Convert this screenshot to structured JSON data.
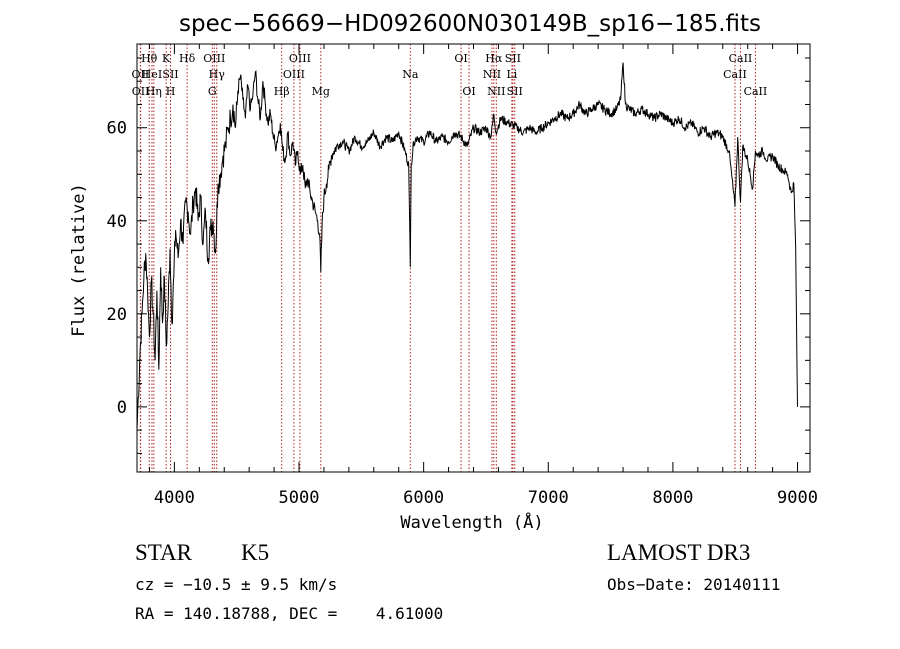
{
  "chart_data": {
    "type": "line",
    "title": "spec−56669−HD092600N030149B_sp16−185.fits",
    "xlabel": "Wavelength (Å)",
    "ylabel": "Flux (relative)",
    "xlim": [
      3700,
      9100
    ],
    "ylim": [
      -14,
      78
    ],
    "xticks": [
      4000,
      5000,
      6000,
      7000,
      8000,
      9000
    ],
    "xtick_labels": [
      "4000",
      "5000",
      "6000",
      "7000",
      "8000",
      "9000"
    ],
    "yticks": [
      0,
      20,
      40,
      60
    ],
    "ytick_labels": [
      "0",
      "20",
      "40",
      "60"
    ],
    "line_color": "#000000",
    "marker_color": "#b22222",
    "series": [
      {
        "x": [
          3700,
          3710,
          3725,
          3740,
          3755,
          3770,
          3785,
          3800,
          3815,
          3830,
          3845,
          3860,
          3875,
          3890,
          3905,
          3920,
          3935,
          3950,
          3965,
          3980,
          3995,
          4010,
          4030,
          4050,
          4070,
          4090,
          4110,
          4130,
          4150,
          4170,
          4190,
          4210,
          4230,
          4250,
          4270,
          4290,
          4310,
          4330,
          4350,
          4370,
          4390,
          4410,
          4430,
          4450,
          4470,
          4490,
          4510,
          4530,
          4550,
          4570,
          4590,
          4610,
          4630,
          4650,
          4670,
          4690,
          4710,
          4730,
          4750,
          4770,
          4790,
          4810,
          4830,
          4850,
          4870,
          4890,
          4910,
          4930,
          4950,
          4970,
          4990,
          5010,
          5030,
          5050,
          5070,
          5090,
          5110,
          5130,
          5150,
          5165,
          5175,
          5185,
          5200,
          5220,
          5240,
          5260,
          5280,
          5300,
          5350,
          5400,
          5450,
          5500,
          5550,
          5600,
          5650,
          5700,
          5750,
          5800,
          5850,
          5880,
          5893,
          5900,
          5920,
          5950,
          6000,
          6050,
          6100,
          6150,
          6200,
          6250,
          6300,
          6350,
          6400,
          6450,
          6500,
          6540,
          6563,
          6580,
          6620,
          6680,
          6750,
          6800,
          6850,
          6900,
          6950,
          7000,
          7050,
          7100,
          7150,
          7200,
          7250,
          7300,
          7350,
          7400,
          7450,
          7500,
          7550,
          7580,
          7600,
          7620,
          7650,
          7700,
          7750,
          7800,
          7850,
          7900,
          7950,
          8000,
          8050,
          8100,
          8150,
          8200,
          8250,
          8300,
          8350,
          8400,
          8450,
          8498,
          8520,
          8542,
          8560,
          8600,
          8640,
          8662,
          8680,
          8720,
          8760,
          8800,
          8840,
          8880,
          8920,
          8950,
          8970,
          8985,
          8995,
          9000
        ],
        "y": [
          -5,
          2,
          12,
          20,
          28,
          33,
          25,
          15,
          27,
          20,
          10,
          25,
          8,
          30,
          18,
          28,
          13,
          22,
          34,
          18,
          28,
          38,
          32,
          40,
          35,
          44,
          42,
          37,
          44,
          47,
          40,
          45,
          35,
          42,
          32,
          38,
          40,
          33,
          48,
          50,
          54,
          56,
          60,
          62,
          65,
          60,
          68,
          71,
          66,
          62,
          69,
          64,
          67,
          72,
          66,
          62,
          70,
          65,
          61,
          63,
          59,
          56,
          58,
          61,
          55,
          53,
          59,
          54,
          57,
          52,
          55,
          50,
          52,
          47,
          49,
          46,
          44,
          42,
          40,
          37,
          29,
          39,
          45,
          48,
          51,
          54,
          55,
          56,
          57,
          55,
          58,
          56,
          57,
          59,
          56,
          58,
          57,
          59,
          55,
          52,
          30,
          52,
          57,
          58,
          57,
          59,
          57,
          58,
          57,
          59,
          58,
          56,
          60,
          59,
          60,
          58,
          63,
          59,
          62,
          61,
          60,
          59,
          60,
          59,
          60,
          61,
          62,
          63,
          62,
          63,
          65,
          63,
          64,
          65,
          64,
          63,
          64,
          66,
          74,
          65,
          64,
          63,
          64,
          63,
          62,
          63,
          62,
          61,
          62,
          60,
          61,
          59,
          60,
          58,
          59,
          58,
          55,
          43,
          58,
          44,
          56,
          53,
          47,
          55,
          54,
          55,
          53,
          54,
          52,
          51,
          50,
          46,
          48,
          34,
          10,
          0
        ]
      }
    ],
    "lines": [
      {
        "label": "OII",
        "x": 3727,
        "row": 2
      },
      {
        "label": "OII",
        "x": 3729,
        "row": 3
      },
      {
        "label": "Hθ",
        "x": 3798,
        "row": 1
      },
      {
        "label": "HeI",
        "x": 3820,
        "row": 2
      },
      {
        "label": "Hη",
        "x": 3835,
        "row": 3
      },
      {
        "label": "K",
        "x": 3934,
        "row": 1
      },
      {
        "label": "SII",
        "x": 3969,
        "row": 2
      },
      {
        "label": "H",
        "x": 3969,
        "row": 3
      },
      {
        "label": "Hδ",
        "x": 4102,
        "row": 1
      },
      {
        "label": "G",
        "x": 4304,
        "row": 3
      },
      {
        "label": "OIII",
        "x": 4320,
        "row": 1
      },
      {
        "label": "Hγ",
        "x": 4340,
        "row": 2
      },
      {
        "label": "Hβ",
        "x": 4861,
        "row": 3
      },
      {
        "label": "OIII",
        "x": 4959,
        "row": 2
      },
      {
        "label": "OIII",
        "x": 5007,
        "row": 1
      },
      {
        "label": "Mg",
        "x": 5175,
        "row": 3
      },
      {
        "label": "Na",
        "x": 5893,
        "row": 2
      },
      {
        "label": "OI",
        "x": 6300,
        "row": 1
      },
      {
        "label": "OI",
        "x": 6364,
        "row": 3
      },
      {
        "label": "NII",
        "x": 6548,
        "row": 2
      },
      {
        "label": "Hα",
        "x": 6563,
        "row": 1
      },
      {
        "label": "NII",
        "x": 6583,
        "row": 3
      },
      {
        "label": "Li",
        "x": 6708,
        "row": 2
      },
      {
        "label": "SII",
        "x": 6716,
        "row": 1
      },
      {
        "label": "SII",
        "x": 6731,
        "row": 3
      },
      {
        "label": "CaII",
        "x": 8498,
        "row": 2
      },
      {
        "label": "CaII",
        "x": 8542,
        "row": 1
      },
      {
        "label": "CaII",
        "x": 8662,
        "row": 3
      }
    ]
  },
  "info": {
    "class_label": "STAR",
    "subclass": "K5",
    "survey": "LAMOST DR3",
    "cz": "cz = −10.5 ± 9.5 km/s",
    "obs_date": "Obs−Date: 20140111",
    "radec": "RA = 140.18788, DEC =    4.61000"
  }
}
